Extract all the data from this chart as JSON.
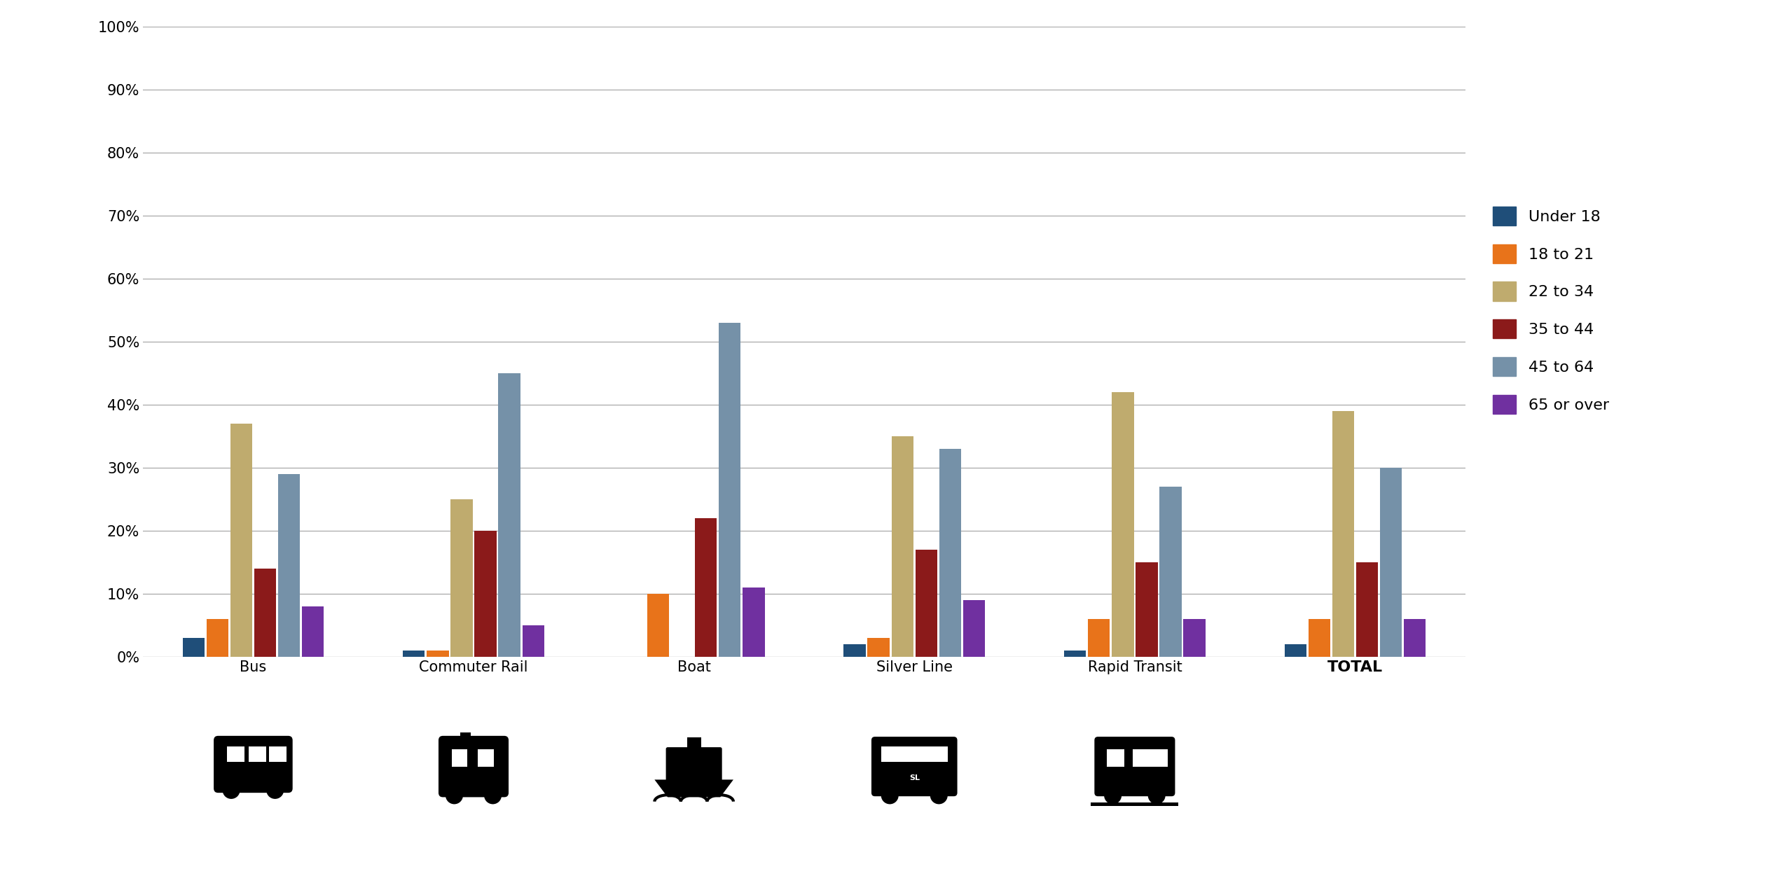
{
  "categories": [
    "Bus",
    "Commuter Rail",
    "Boat",
    "Silver Line",
    "Rapid Transit",
    "TOTAL"
  ],
  "age_groups": [
    "Under 18",
    "18 to 21",
    "22 to 34",
    "35 to 44",
    "45 to 64",
    "65 or over"
  ],
  "colors": [
    "#1f4e79",
    "#e8731a",
    "#bfab6e",
    "#8b1a1a",
    "#7591a8",
    "#7030a0"
  ],
  "data": {
    "Bus": [
      3,
      6,
      37,
      14,
      29,
      8
    ],
    "Commuter Rail": [
      1,
      1,
      25,
      20,
      45,
      5
    ],
    "Boat": [
      0,
      10,
      0,
      22,
      53,
      11
    ],
    "Silver Line": [
      2,
      3,
      35,
      17,
      33,
      9
    ],
    "Rapid Transit": [
      1,
      6,
      42,
      15,
      27,
      6
    ],
    "TOTAL": [
      2,
      6,
      39,
      15,
      30,
      6
    ]
  },
  "ylim": [
    0,
    1.0
  ],
  "yticks": [
    0,
    0.1,
    0.2,
    0.3,
    0.4,
    0.5,
    0.6,
    0.7,
    0.8,
    0.9,
    1.0
  ],
  "ytick_labels": [
    "0%",
    "10%",
    "20%",
    "30%",
    "40%",
    "50%",
    "60%",
    "70%",
    "80%",
    "90%",
    "100%"
  ],
  "background_color": "#ffffff",
  "grid_color": "#b0b0b0",
  "bar_width": 0.13,
  "legend_fontsize": 16,
  "tick_fontsize": 15,
  "label_fontsize": 15,
  "total_fontsize": 16
}
